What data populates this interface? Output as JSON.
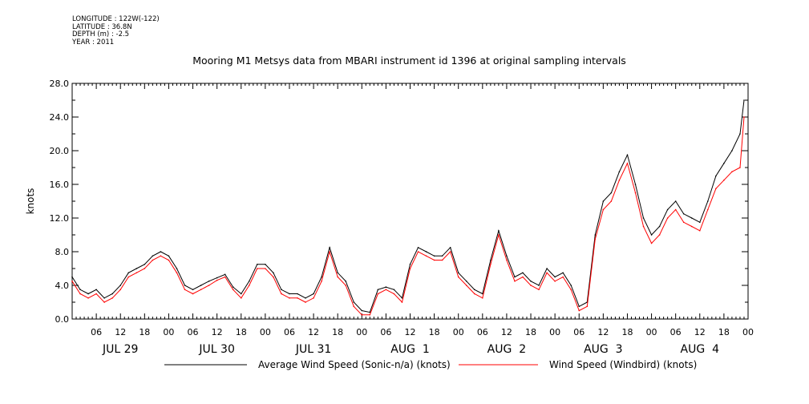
{
  "header": {
    "longitude": "LONGITUDE : 122W(-122)",
    "latitude": "LATITUDE : 36.8N",
    "depth": "DEPTH (m) : -2.5",
    "year": "YEAR : 2011"
  },
  "chart_data": {
    "type": "line",
    "title": "Mooring M1 Metsys data from MBARI instrument id 1396 at original sampling intervals",
    "ylabel": "knots",
    "xlabel": "",
    "ylim": [
      0,
      28
    ],
    "y_ticks": [
      "0.0",
      "4.0",
      "8.0",
      "12.0",
      "16.0",
      "20.0",
      "24.0",
      "28.0"
    ],
    "x_hour_ticks": [
      "06",
      "12",
      "18",
      "00",
      "06",
      "12",
      "18",
      "00",
      "06",
      "12",
      "18",
      "00",
      "06",
      "12",
      "18",
      "00",
      "06",
      "12",
      "18",
      "00",
      "06",
      "12",
      "18",
      "00",
      "06",
      "12",
      "18",
      "00"
    ],
    "x_day_labels": [
      "JUL 29",
      "JUL 30",
      "JUL 31",
      "AUG  1",
      "AUG  2",
      "AUG  3",
      "AUG  4"
    ],
    "x_range_hours": [
      0,
      168
    ],
    "grid": false,
    "legend_position": "bottom",
    "series": [
      {
        "name": "Average Wind Speed (Sonic-n/a) (knots)",
        "color": "#000000",
        "hours": [
          0,
          2,
          4,
          6,
          8,
          10,
          12,
          14,
          16,
          18,
          20,
          22,
          24,
          26,
          28,
          30,
          32,
          34,
          36,
          38,
          40,
          42,
          44,
          46,
          48,
          50,
          52,
          54,
          56,
          58,
          60,
          62,
          64,
          66,
          68,
          70,
          72,
          74,
          76,
          78,
          80,
          82,
          84,
          86,
          88,
          90,
          92,
          94,
          96,
          98,
          100,
          102,
          104,
          106,
          108,
          110,
          112,
          114,
          116,
          118,
          120,
          122,
          124,
          126,
          128,
          130,
          132,
          134,
          136,
          138,
          140,
          142,
          144,
          146,
          148,
          150,
          152,
          154,
          156,
          158,
          160,
          162,
          164,
          166,
          167
        ],
        "values": [
          5.0,
          3.5,
          3.0,
          3.5,
          2.5,
          3.0,
          4.0,
          5.5,
          6.0,
          6.5,
          7.5,
          8.0,
          7.5,
          6.0,
          4.0,
          3.5,
          4.0,
          4.5,
          4.9,
          5.3,
          3.8,
          3.0,
          4.5,
          6.5,
          6.5,
          5.5,
          3.5,
          3.0,
          3.0,
          2.5,
          3.0,
          5.0,
          8.5,
          5.5,
          4.5,
          2.0,
          1.0,
          0.8,
          3.5,
          3.8,
          3.5,
          2.5,
          6.5,
          8.5,
          8.0,
          7.5,
          7.5,
          8.5,
          5.5,
          4.5,
          3.5,
          3.0,
          7.0,
          10.5,
          7.5,
          5.0,
          5.5,
          4.5,
          4.0,
          6.0,
          5.0,
          5.5,
          4.0,
          1.5,
          2.0,
          10.0,
          14.0,
          15.0,
          17.5,
          19.5,
          16.0,
          12.0,
          10.0,
          11.0,
          13.0,
          14.0,
          12.5,
          12.0,
          11.5,
          14.0,
          17.0,
          18.5,
          20.0,
          22.0,
          26.0
        ]
      },
      {
        "name": "Wind Speed (Windbird) (knots)",
        "color": "#ff0000",
        "hours": [
          0,
          2,
          4,
          6,
          8,
          10,
          12,
          14,
          16,
          18,
          20,
          22,
          24,
          26,
          28,
          30,
          32,
          34,
          36,
          38,
          40,
          42,
          44,
          46,
          48,
          50,
          52,
          54,
          56,
          58,
          60,
          62,
          64,
          66,
          68,
          70,
          72,
          74,
          76,
          78,
          80,
          82,
          84,
          86,
          88,
          90,
          92,
          94,
          96,
          98,
          100,
          102,
          104,
          106,
          108,
          110,
          112,
          114,
          116,
          118,
          120,
          122,
          124,
          126,
          128,
          130,
          132,
          134,
          136,
          138,
          140,
          142,
          144,
          146,
          148,
          150,
          152,
          154,
          156,
          158,
          160,
          162,
          164,
          166,
          167
        ],
        "values": [
          4.5,
          3.0,
          2.5,
          3.0,
          2.0,
          2.5,
          3.5,
          5.0,
          5.5,
          6.0,
          7.0,
          7.5,
          7.0,
          5.5,
          3.5,
          3.0,
          3.5,
          4.0,
          4.6,
          5.0,
          3.5,
          2.5,
          4.0,
          6.0,
          6.0,
          5.0,
          3.0,
          2.5,
          2.5,
          2.0,
          2.5,
          4.5,
          8.0,
          5.0,
          4.0,
          1.5,
          0.5,
          0.5,
          3.0,
          3.5,
          3.0,
          2.0,
          6.0,
          8.0,
          7.5,
          7.0,
          7.0,
          8.0,
          5.0,
          4.0,
          3.0,
          2.5,
          6.5,
          10.0,
          7.0,
          4.5,
          5.0,
          4.0,
          3.5,
          5.5,
          4.5,
          5.0,
          3.5,
          1.0,
          1.5,
          9.5,
          13.0,
          14.0,
          16.5,
          18.5,
          15.0,
          11.0,
          9.0,
          10.0,
          12.0,
          13.0,
          11.5,
          11.0,
          10.5,
          13.0,
          15.5,
          16.5,
          17.5,
          18.0,
          24.0
        ]
      }
    ]
  }
}
